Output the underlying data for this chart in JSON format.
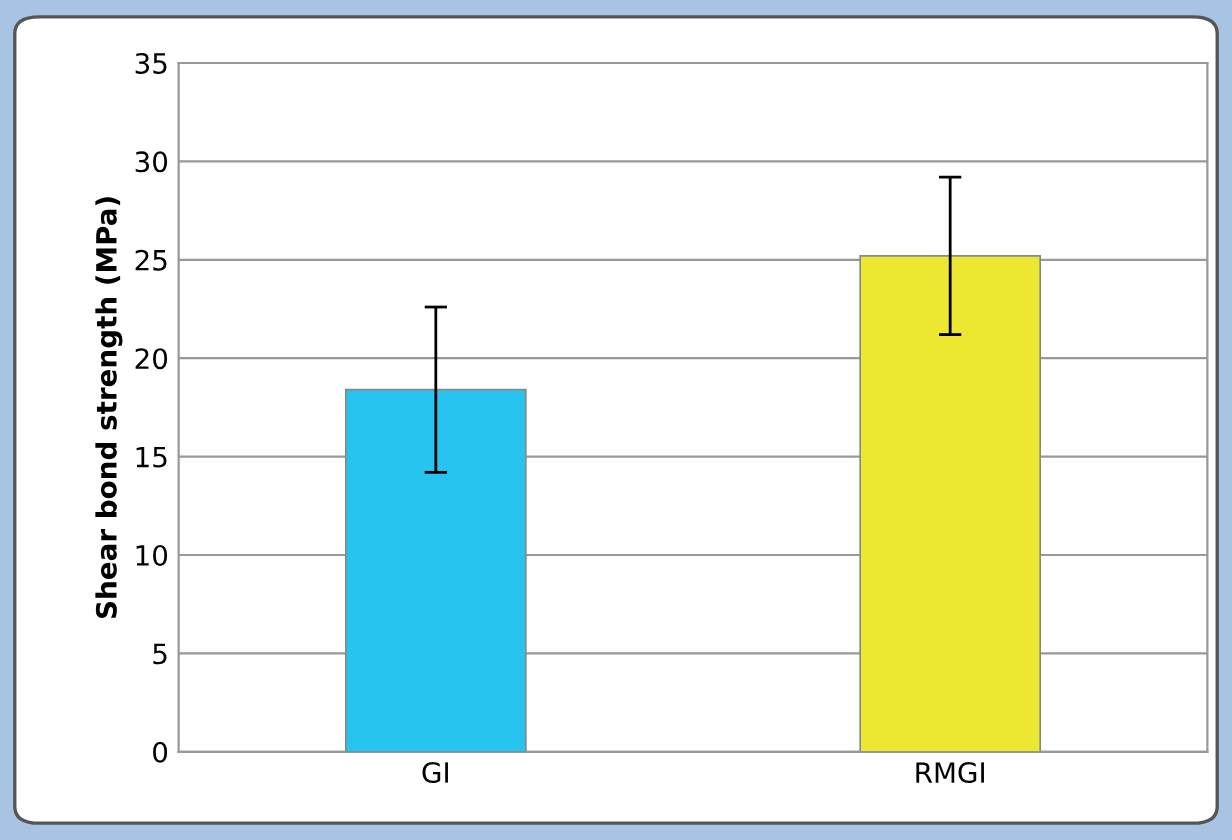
{
  "chart_data": {
    "type": "bar",
    "ylabel": "Shear bond strength (MPa)",
    "categories": [
      "GI",
      "RMGI"
    ],
    "values": [
      18.4,
      25.2
    ],
    "errors": [
      4.2,
      4.0
    ],
    "colors": [
      "#27c4f0",
      "#ece832"
    ],
    "ylim": [
      0,
      35
    ],
    "yticks": [
      0,
      5,
      10,
      15,
      20,
      25,
      30,
      35
    ],
    "grid": "y"
  }
}
